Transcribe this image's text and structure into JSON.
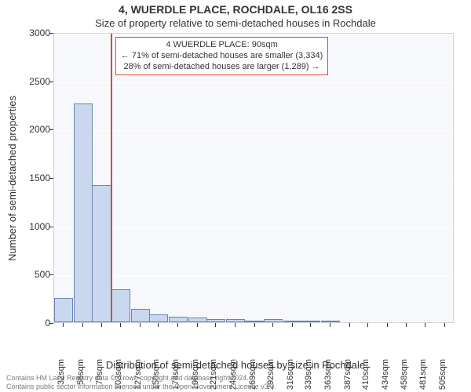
{
  "title": "4, WUERDLE PLACE, ROCHDALE, OL16 2SS",
  "subtitle": "Size of property relative to semi-detached houses in Rochdale",
  "yaxis_label": "Number of semi-detached properties",
  "xaxis_label": "Distribution of semi-detached houses by size in Rochdale",
  "footer_line1": "Contains HM Land Registry data © Crown copyright and database right 2024.",
  "footer_line2": "Contains public sector information licensed under the Open Government Licence v3.0.",
  "chart": {
    "type": "histogram",
    "background_color": "#f6f8fc",
    "grid_color": "#ffffff",
    "axis_color": "#d0d4db",
    "bar_fill": "#c9d8ef",
    "bar_stroke": "#6a84b0",
    "marker_color": "#d94a3a",
    "marker_x": 90,
    "ylim": [
      0,
      3000
    ],
    "yticks": [
      0,
      500,
      1000,
      1500,
      2000,
      2500,
      3000
    ],
    "xlim": [
      20,
      517
    ],
    "xticks": [
      32,
      56,
      79,
      103,
      127,
      150,
      174,
      198,
      221,
      245,
      269,
      292,
      316,
      339,
      363,
      387,
      410,
      434,
      458,
      481,
      505
    ],
    "xtick_suffix": "sqm",
    "bar_width_units": 23.6,
    "bars": [
      {
        "x": 32,
        "y": 250
      },
      {
        "x": 56,
        "y": 2260
      },
      {
        "x": 79,
        "y": 1420
      },
      {
        "x": 103,
        "y": 340
      },
      {
        "x": 127,
        "y": 140
      },
      {
        "x": 150,
        "y": 80
      },
      {
        "x": 174,
        "y": 55
      },
      {
        "x": 198,
        "y": 45
      },
      {
        "x": 221,
        "y": 35
      },
      {
        "x": 245,
        "y": 30
      },
      {
        "x": 269,
        "y": 20
      },
      {
        "x": 292,
        "y": 35
      },
      {
        "x": 316,
        "y": 8
      },
      {
        "x": 339,
        "y": 5
      },
      {
        "x": 363,
        "y": 3
      },
      {
        "x": 387,
        "y": 0
      },
      {
        "x": 410,
        "y": 0
      },
      {
        "x": 434,
        "y": 0
      },
      {
        "x": 458,
        "y": 0
      },
      {
        "x": 481,
        "y": 0
      },
      {
        "x": 505,
        "y": 0
      }
    ],
    "annotation": {
      "line1": "4 WUERDLE PLACE: 90sqm",
      "line2": "← 71% of semi-detached houses are smaller (3,334)",
      "line3": "28% of semi-detached houses are larger (1,289) →"
    },
    "title_fontsize": 14,
    "subtitle_fontsize": 13,
    "label_fontsize": 13,
    "tick_fontsize": 12,
    "annotation_fontsize": 11
  }
}
